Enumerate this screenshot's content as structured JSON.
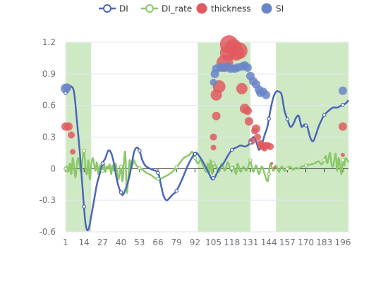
{
  "chart_data": {
    "type": "line",
    "xlim": [
      1,
      200
    ],
    "ylim": [
      -0.6,
      1.2
    ],
    "x_ticks": [
      "1",
      "14",
      "27",
      "40",
      "53",
      "66",
      "79",
      "92",
      "105",
      "118",
      "131",
      "144",
      "157",
      "170",
      "183",
      "196"
    ],
    "y_ticks": [
      "1.2",
      "0.9",
      "0.6",
      "0.3",
      "0",
      "-0.3",
      "-0.6"
    ],
    "legend_position": "top-center",
    "shaded_ranges": [
      [
        1,
        19
      ],
      [
        94,
        131
      ],
      [
        149,
        200
      ]
    ],
    "shade_color": "#cfe9c5",
    "legend": [
      {
        "label": "DI",
        "color": "#4a66b8",
        "style": "line-circle"
      },
      {
        "label": "DI_rate",
        "color": "#8bc86a",
        "style": "line-circle"
      },
      {
        "label": "thickness",
        "color": "#e05a5f",
        "style": "dot"
      },
      {
        "label": "SI",
        "color": "#6a86c8",
        "style": "dot"
      }
    ],
    "series": [
      {
        "name": "DI",
        "color": "#4a66b8",
        "points": [
          [
            1,
            0.72
          ],
          [
            3,
            0.78
          ],
          [
            5,
            0.78
          ],
          [
            7,
            0.72
          ],
          [
            9,
            0.45
          ],
          [
            11,
            0.15
          ],
          [
            13,
            -0.2
          ],
          [
            15,
            -0.52
          ],
          [
            17,
            -0.58
          ],
          [
            19,
            -0.45
          ],
          [
            21,
            -0.3
          ],
          [
            23,
            -0.15
          ],
          [
            25,
            -0.05
          ],
          [
            27,
            0.05
          ],
          [
            29,
            0.1
          ],
          [
            31,
            0.17
          ],
          [
            33,
            0.15
          ],
          [
            35,
            0.05
          ],
          [
            37,
            -0.1
          ],
          [
            39,
            -0.2
          ],
          [
            41,
            -0.25
          ],
          [
            43,
            -0.2
          ],
          [
            45,
            -0.12
          ],
          [
            47,
            0.0
          ],
          [
            49,
            0.15
          ],
          [
            51,
            0.2
          ],
          [
            53,
            0.17
          ],
          [
            55,
            0.08
          ],
          [
            57,
            0.03
          ],
          [
            59,
            0.01
          ],
          [
            62,
            -0.01
          ],
          [
            66,
            -0.04
          ],
          [
            68,
            -0.15
          ],
          [
            70,
            -0.26
          ],
          [
            72,
            -0.3
          ],
          [
            74,
            -0.28
          ],
          [
            76,
            -0.25
          ],
          [
            79,
            -0.21
          ],
          [
            83,
            -0.1
          ],
          [
            87,
            0.03
          ],
          [
            91,
            0.13
          ],
          [
            93,
            0.15
          ],
          [
            96,
            0.1
          ],
          [
            99,
            0.03
          ],
          [
            102,
            -0.05
          ],
          [
            104,
            -0.1
          ],
          [
            106,
            -0.08
          ],
          [
            109,
            0.0
          ],
          [
            112,
            0.05
          ],
          [
            115,
            0.12
          ],
          [
            118,
            0.18
          ],
          [
            121,
            0.2
          ],
          [
            124,
            0.22
          ],
          [
            127,
            0.21
          ],
          [
            129,
            0.22
          ],
          [
            131,
            0.25
          ],
          [
            133,
            0.3
          ],
          [
            135,
            0.26
          ],
          [
            137,
            0.18
          ],
          [
            139,
            0.23
          ],
          [
            141,
            0.32
          ],
          [
            143,
            0.4
          ],
          [
            145,
            0.55
          ],
          [
            147,
            0.67
          ],
          [
            149,
            0.73
          ],
          [
            151,
            0.73
          ],
          [
            153,
            0.7
          ],
          [
            155,
            0.55
          ],
          [
            157,
            0.47
          ],
          [
            159,
            0.4
          ],
          [
            161,
            0.42
          ],
          [
            163,
            0.48
          ],
          [
            165,
            0.5
          ],
          [
            167,
            0.4
          ],
          [
            169,
            0.42
          ],
          [
            171,
            0.4
          ],
          [
            173,
            0.3
          ],
          [
            175,
            0.26
          ],
          [
            177,
            0.32
          ],
          [
            179,
            0.4
          ],
          [
            181,
            0.46
          ],
          [
            183,
            0.51
          ],
          [
            186,
            0.55
          ],
          [
            189,
            0.58
          ],
          [
            192,
            0.58
          ],
          [
            195,
            0.6
          ],
          [
            198,
            0.62
          ],
          [
            200,
            0.65
          ]
        ],
        "markers": [
          1,
          14,
          27,
          40,
          53,
          66,
          79,
          92,
          105,
          118,
          131,
          144,
          157,
          170,
          183,
          196
        ]
      },
      {
        "name": "DI_rate",
        "color": "#8bc86a",
        "points": [
          [
            1,
            0.0
          ],
          [
            2,
            0.02
          ],
          [
            3,
            -0.03
          ],
          [
            4,
            0.05
          ],
          [
            5,
            -0.05
          ],
          [
            6,
            0.1
          ],
          [
            7,
            0.0
          ],
          [
            8,
            -0.08
          ],
          [
            9,
            0.05
          ],
          [
            10,
            0.1
          ],
          [
            11,
            0.02
          ],
          [
            12,
            -0.03
          ],
          [
            13,
            0.1
          ],
          [
            14,
            0.17
          ],
          [
            15,
            0.0
          ],
          [
            16,
            -0.05
          ],
          [
            17,
            0.08
          ],
          [
            18,
            -0.1
          ],
          [
            19,
            0.03
          ],
          [
            20,
            0.1
          ],
          [
            21,
            0.05
          ],
          [
            22,
            -0.02
          ],
          [
            23,
            0.06
          ],
          [
            24,
            -0.05
          ],
          [
            25,
            0.03
          ],
          [
            26,
            0.0
          ],
          [
            27,
            -0.02
          ],
          [
            28,
            0.05
          ],
          [
            29,
            -0.03
          ],
          [
            30,
            0.02
          ],
          [
            31,
            0.0
          ],
          [
            32,
            0.04
          ],
          [
            33,
            -0.05
          ],
          [
            34,
            0.03
          ],
          [
            35,
            -0.02
          ],
          [
            36,
            0.05
          ],
          [
            37,
            0.0
          ],
          [
            38,
            -0.1
          ],
          [
            39,
            -0.05
          ],
          [
            40,
            0.02
          ],
          [
            41,
            -0.12
          ],
          [
            42,
            0.05
          ],
          [
            43,
            0.15
          ],
          [
            44,
            -0.22
          ],
          [
            45,
            -0.1
          ],
          [
            46,
            0.08
          ],
          [
            47,
            0.0
          ],
          [
            48,
            0.03
          ],
          [
            49,
            0.08
          ],
          [
            50,
            0.05
          ],
          [
            52,
            0.01
          ],
          [
            54,
            0.0
          ],
          [
            56,
            -0.02
          ],
          [
            58,
            -0.04
          ],
          [
            61,
            -0.06
          ],
          [
            64,
            -0.09
          ],
          [
            67,
            -0.1
          ],
          [
            70,
            -0.08
          ],
          [
            73,
            -0.06
          ],
          [
            76,
            -0.03
          ],
          [
            80,
            0.03
          ],
          [
            84,
            0.1
          ],
          [
            88,
            0.13
          ],
          [
            90,
            0.16
          ],
          [
            92,
            0.1
          ],
          [
            94,
            0.05
          ],
          [
            96,
            0.08
          ],
          [
            98,
            0.02
          ],
          [
            100,
            -0.03
          ],
          [
            101,
            0.05
          ],
          [
            102,
            -0.04
          ],
          [
            103,
            0.08
          ],
          [
            104,
            -0.05
          ],
          [
            105,
            0.05
          ],
          [
            107,
            0.02
          ],
          [
            109,
            -0.03
          ],
          [
            111,
            0.05
          ],
          [
            113,
            -0.02
          ],
          [
            115,
            0.06
          ],
          [
            117,
            -0.01
          ],
          [
            119,
            0.02
          ],
          [
            121,
            -0.05
          ],
          [
            122,
            0.05
          ],
          [
            124,
            -0.03
          ],
          [
            126,
            0.02
          ],
          [
            128,
            -0.02
          ],
          [
            130,
            0.04
          ],
          [
            131,
            0.08
          ],
          [
            133,
            -0.03
          ],
          [
            135,
            0.03
          ],
          [
            137,
            -0.05
          ],
          [
            139,
            0.02
          ],
          [
            141,
            -0.05
          ],
          [
            143,
            -0.12
          ],
          [
            144,
            -0.05
          ],
          [
            145,
            0.05
          ],
          [
            147,
            -0.02
          ],
          [
            149,
            0.03
          ],
          [
            151,
            -0.03
          ],
          [
            153,
            0.02
          ],
          [
            155,
            -0.02
          ],
          [
            157,
            0.0
          ],
          [
            159,
            0.02
          ],
          [
            161,
            -0.01
          ],
          [
            163,
            0.01
          ],
          [
            165,
            0.0
          ],
          [
            167,
            0.02
          ],
          [
            170,
            0.03
          ],
          [
            173,
            0.04
          ],
          [
            176,
            0.05
          ],
          [
            179,
            0.07
          ],
          [
            181,
            0.04
          ],
          [
            183,
            0.08
          ],
          [
            184,
            0.12
          ],
          [
            185,
            0.05
          ],
          [
            186,
            0.1
          ],
          [
            187,
            0.15
          ],
          [
            188,
            0.05
          ],
          [
            189,
            0.02
          ],
          [
            190,
            0.08
          ],
          [
            191,
            0.14
          ],
          [
            192,
            -0.02
          ],
          [
            193,
            0.1
          ],
          [
            194,
            0.04
          ],
          [
            195,
            -0.05
          ],
          [
            196,
            0.08
          ],
          [
            197,
            0.03
          ],
          [
            198,
            0.1
          ],
          [
            200,
            0.06
          ]
        ],
        "markers": [
          1,
          14,
          27,
          40,
          53,
          66,
          79,
          92,
          105,
          118,
          131,
          144,
          157,
          170,
          183,
          196
        ]
      },
      {
        "name": "thickness",
        "color": "#e05a5f",
        "points": [
          [
            1,
            0.4,
            6
          ],
          [
            3,
            0.4,
            6
          ],
          [
            5,
            0.32,
            5
          ],
          [
            6,
            0.16,
            4
          ],
          [
            105,
            0.3,
            5
          ],
          [
            105,
            0.2,
            4
          ],
          [
            107,
            0.5,
            6
          ],
          [
            107,
            0.7,
            8
          ],
          [
            109,
            0.78,
            9
          ],
          [
            113,
            1.0,
            12
          ],
          [
            115,
            1.1,
            11
          ],
          [
            116,
            1.18,
            13
          ],
          [
            119,
            1.15,
            12
          ],
          [
            121,
            1.1,
            11
          ],
          [
            123,
            1.12,
            12
          ],
          [
            125,
            0.76,
            8
          ],
          [
            127,
            0.57,
            7
          ],
          [
            129,
            0.55,
            6
          ],
          [
            130,
            0.45,
            6
          ],
          [
            132,
            0.26,
            5
          ],
          [
            134,
            0.36,
            5
          ],
          [
            135,
            0.38,
            6
          ],
          [
            136,
            0.3,
            5
          ],
          [
            138,
            0.24,
            5
          ],
          [
            139,
            0.22,
            6
          ],
          [
            140,
            0.2,
            4
          ],
          [
            141,
            0.19,
            4
          ],
          [
            142,
            0.22,
            5
          ],
          [
            143,
            0.22,
            5
          ],
          [
            145,
            0.21,
            5
          ],
          [
            146,
            0.05,
            2
          ],
          [
            148,
            0.01,
            2
          ],
          [
            196,
            0.4,
            6
          ],
          [
            196,
            0.13,
            3
          ]
        ]
      },
      {
        "name": "SI",
        "color": "#6a86c8",
        "points": [
          [
            1,
            0.76,
            7
          ],
          [
            2,
            0.77,
            6
          ],
          [
            105,
            0.82,
            5
          ],
          [
            106,
            0.9,
            6
          ],
          [
            107,
            0.95,
            6
          ],
          [
            110,
            0.96,
            6
          ],
          [
            112,
            0.96,
            6
          ],
          [
            115,
            0.97,
            6
          ],
          [
            117,
            0.95,
            6
          ],
          [
            120,
            0.95,
            6
          ],
          [
            122,
            0.96,
            6
          ],
          [
            125,
            0.97,
            6
          ],
          [
            127,
            0.98,
            6
          ],
          [
            129,
            0.96,
            6
          ],
          [
            131,
            0.88,
            6
          ],
          [
            133,
            0.83,
            6
          ],
          [
            135,
            0.8,
            6
          ],
          [
            137,
            0.75,
            6
          ],
          [
            138,
            0.72,
            6
          ],
          [
            140,
            0.73,
            6
          ],
          [
            142,
            0.7,
            6
          ],
          [
            196,
            0.74,
            6
          ]
        ]
      }
    ]
  }
}
